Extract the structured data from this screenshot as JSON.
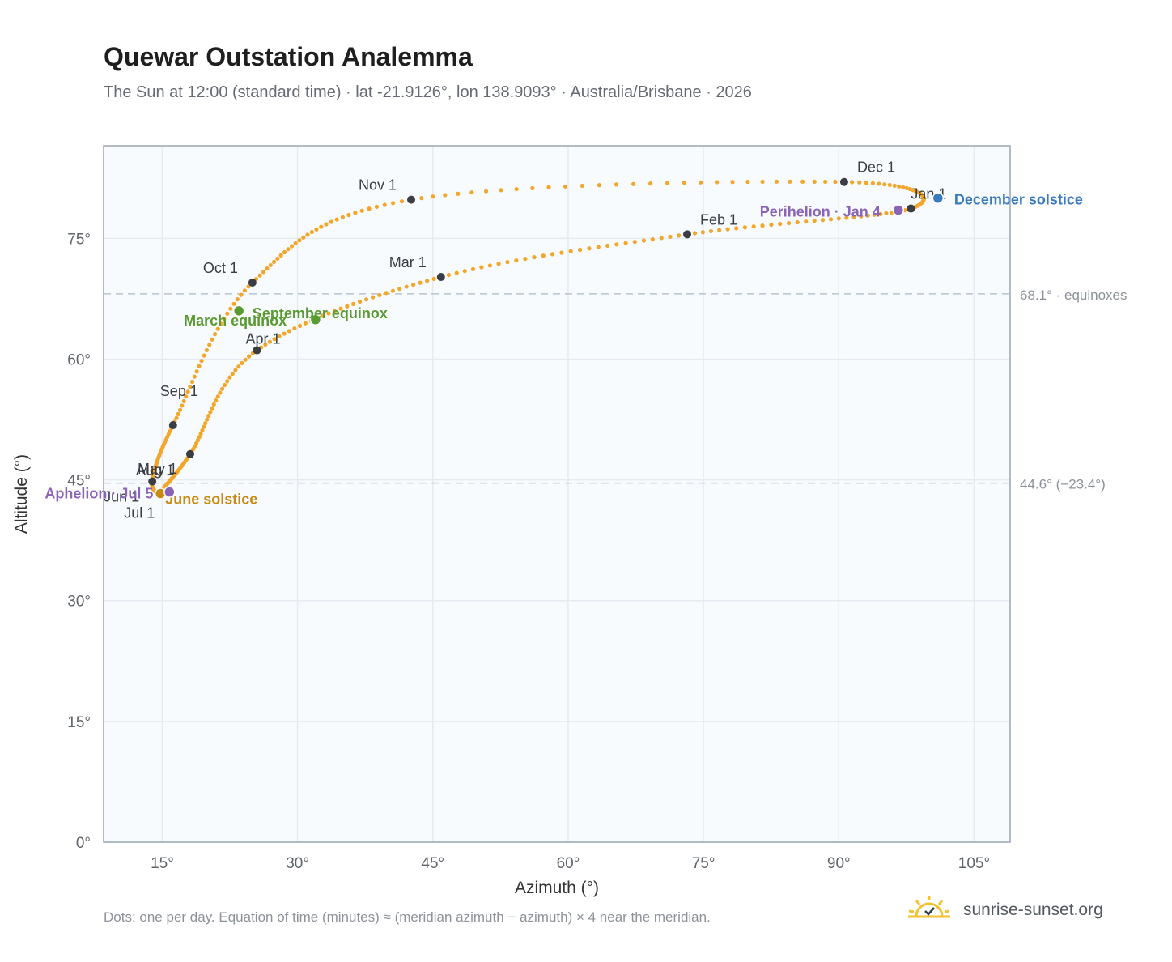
{
  "title": "Quewar Outstation Analemma",
  "subtitle": "The Sun at 12:00 (standard time) · lat -21.9126°, lon 138.9093° · Australia/Brisbane · 2026",
  "footnote": "Dots: one per day. Equation of time (minutes) ≈ (meridian azimuth − azimuth) × 4 near the meridian.",
  "brand": {
    "text": "sunrise-sunset.org",
    "icon": "sun-icon",
    "colors": {
      "sun": "#f2c230",
      "check": "#2d3a4a"
    }
  },
  "colors": {
    "curve": "#f2a62a",
    "month_dot": "#3a3e44",
    "equinox": "#5a9a32",
    "june_solstice": "#c88a10",
    "december_solstice": "#3a7bbf",
    "apsis": "#8a64b8",
    "ref_line": "#b8c4d0",
    "plot_bg": "#f8fbfe",
    "grid": "#e5ebf1",
    "frame": "#9aa6b4"
  },
  "chart_data": {
    "type": "scatter",
    "title": "Quewar Outstation Analemma",
    "xlabel": "Azimuth (°)",
    "ylabel": "Altitude (°)",
    "xlim": [
      8.5,
      109
    ],
    "ylim": [
      0,
      86.5
    ],
    "xticks": [
      15,
      30,
      45,
      60,
      75,
      90,
      105
    ],
    "xtick_labels": [
      "15°",
      "30°",
      "45°",
      "60°",
      "75°",
      "90°",
      "105°"
    ],
    "yticks": [
      0,
      15,
      30,
      45,
      60,
      75
    ],
    "ytick_labels": [
      "0°",
      "15°",
      "30°",
      "45°",
      "60°",
      "75°"
    ],
    "grid": true,
    "reference_lines": [
      {
        "y": 68.1,
        "label": "68.1° · equinoxes"
      },
      {
        "y": 44.6,
        "label": "44.6° (−23.4°)"
      }
    ],
    "months": [
      {
        "label": "Jan 1",
        "az": 98.0,
        "alt": 78.7
      },
      {
        "label": "Feb 1",
        "az": 73.2,
        "alt": 75.5
      },
      {
        "label": "Mar 1",
        "az": 45.9,
        "alt": 70.2
      },
      {
        "label": "Apr 1",
        "az": 25.5,
        "alt": 61.1
      },
      {
        "label": "May 1",
        "az": 18.1,
        "alt": 48.2
      },
      {
        "label": "Jun 1",
        "az": 14.8,
        "alt": 43.5
      },
      {
        "label": "Jul 1",
        "az": 14.9,
        "alt": 43.3
      },
      {
        "label": "Aug 1",
        "az": 13.9,
        "alt": 44.8
      },
      {
        "label": "Sep 1",
        "az": 16.2,
        "alt": 51.8
      },
      {
        "label": "Oct 1",
        "az": 25.0,
        "alt": 69.5
      },
      {
        "label": "Nov 1",
        "az": 42.6,
        "alt": 79.8
      },
      {
        "label": "Dec 1",
        "az": 90.6,
        "alt": 82.0
      }
    ],
    "events": [
      {
        "label": "March equinox",
        "az": 23.5,
        "alt": 66.0,
        "kind": "equinox"
      },
      {
        "label": "September equinox",
        "az": 32.0,
        "alt": 64.9,
        "kind": "equinox"
      },
      {
        "label": "June solstice",
        "az": 14.8,
        "alt": 43.3,
        "kind": "june_solstice"
      },
      {
        "label": "December solstice",
        "az": 101.0,
        "alt": 80.0,
        "kind": "december_solstice"
      },
      {
        "label": "Perihelion · Jan 4",
        "az": 96.6,
        "alt": 78.5,
        "kind": "apsis"
      },
      {
        "label": "Aphelion · Jul 5",
        "az": 15.8,
        "alt": 43.5,
        "kind": "apsis"
      }
    ],
    "path_notes": "one dot per day; path passes through the month points in order"
  }
}
